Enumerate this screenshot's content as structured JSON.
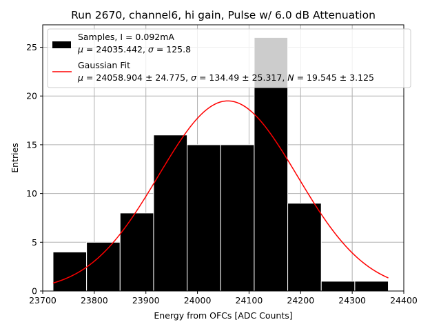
{
  "chart_data": {
    "type": "bar",
    "title": "Run 2670, channel6, hi gain, Pulse w/ 6.0 dB Attenuation",
    "xlabel": "Energy from OFCs [ADC Counts]",
    "ylabel": "Entries",
    "xlim": [
      23700,
      24400
    ],
    "ylim": [
      0,
      27.3
    ],
    "xticks": [
      23700,
      23800,
      23900,
      24000,
      24100,
      24200,
      24300,
      24400
    ],
    "yticks": [
      0,
      5,
      10,
      15,
      20,
      25
    ],
    "grid": true,
    "legend_position": "top-right",
    "bins": [
      {
        "x0": 23720,
        "x1": 23785,
        "count": 4
      },
      {
        "x0": 23785,
        "x1": 23850,
        "count": 5
      },
      {
        "x0": 23850,
        "x1": 23915,
        "count": 8
      },
      {
        "x0": 23915,
        "x1": 23980,
        "count": 16
      },
      {
        "x0": 23980,
        "x1": 24045,
        "count": 15
      },
      {
        "x0": 24045,
        "x1": 24110,
        "count": 15
      },
      {
        "x0": 24110,
        "x1": 24175,
        "count": 26
      },
      {
        "x0": 24175,
        "x1": 24240,
        "count": 9
      },
      {
        "x0": 24240,
        "x1": 24305,
        "count": 1
      },
      {
        "x0": 24305,
        "x1": 24370,
        "count": 1
      }
    ],
    "fit": {
      "mu": 24058.904,
      "sigma": 134.49,
      "amplitude": 19.5,
      "x_range": [
        23720,
        24370
      ]
    },
    "colors": {
      "bars": "#000000",
      "fit": "#ff0000",
      "grid": "#b0b0b0"
    },
    "legend": [
      {
        "line1": "Samples, I = 0.092mA",
        "line2_parts": [
          "μ",
          " = 24035.442, ",
          "σ",
          " = 125.8"
        ]
      },
      {
        "line1": "Gaussian Fit",
        "line2_parts": [
          "μ",
          " = 24058.904 ± 24.775, ",
          "σ",
          " = 134.49 ± 25.317, ",
          "N",
          " = 19.545 ± 3.125"
        ]
      }
    ]
  }
}
